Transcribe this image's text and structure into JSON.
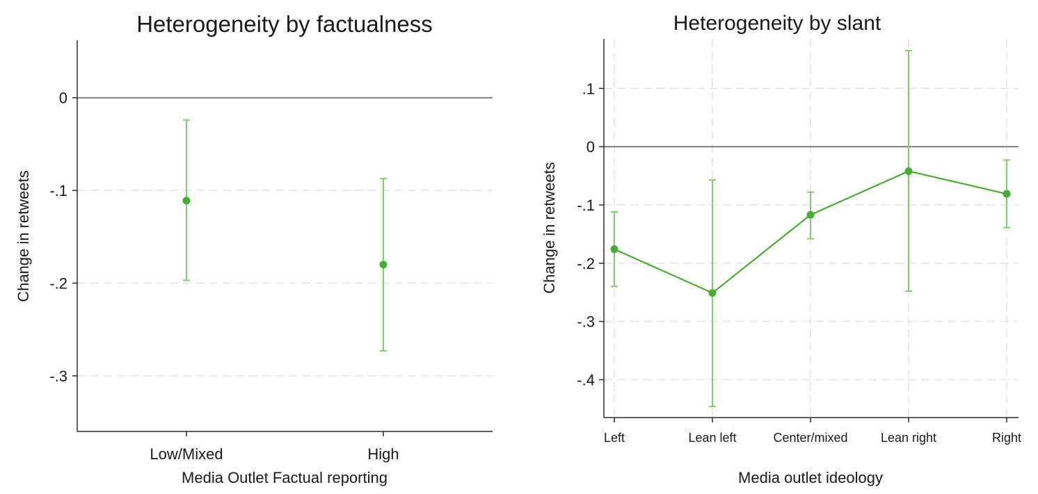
{
  "chart_data": [
    {
      "type": "scatter",
      "title": "Heterogeneity by factualness",
      "xlabel": "Media Outlet Factual reporting",
      "ylabel": "Change in retweets",
      "categories": [
        "Low/Mixed",
        "High"
      ],
      "ylim": [
        -0.36,
        0.062
      ],
      "yticks": [
        0,
        -0.1,
        -0.2,
        -0.3
      ],
      "ytick_labels": [
        "0",
        "-.1",
        "-.2",
        "-.3"
      ],
      "grid": "horizontal dashed",
      "reference_line": 0,
      "series": [
        {
          "values": [
            -0.111,
            -0.18
          ],
          "ci_low": [
            -0.197,
            -0.273
          ],
          "ci_high": [
            -0.024,
            -0.087
          ]
        }
      ],
      "color": "#4aac33",
      "ci_color": "#80cc6e",
      "legend": "none"
    },
    {
      "type": "line",
      "title": "Heterogeneity by slant",
      "xlabel": "Media outlet ideology",
      "ylabel": "Change in retweets",
      "categories": [
        "Left",
        "Lean left",
        "Center/mixed",
        "Lean right",
        "Right"
      ],
      "ylim": [
        -0.465,
        0.185
      ],
      "yticks": [
        0.1,
        0,
        -0.1,
        -0.2,
        -0.3,
        -0.4
      ],
      "ytick_labels": [
        ".1",
        "0",
        "-.1",
        "-.2",
        "-.3",
        "-.4"
      ],
      "grid": "horizontal and vertical dashed",
      "reference_line": 0,
      "series": [
        {
          "values": [
            -0.176,
            -0.251,
            -0.117,
            -0.042,
            -0.081
          ],
          "ci_low": [
            -0.24,
            -0.446,
            -0.158,
            -0.248,
            -0.139
          ],
          "ci_high": [
            -0.112,
            -0.057,
            -0.078,
            0.165,
            -0.023
          ]
        }
      ],
      "color": "#4aac33",
      "ci_color": "#80cc6e",
      "legend": "none"
    }
  ]
}
